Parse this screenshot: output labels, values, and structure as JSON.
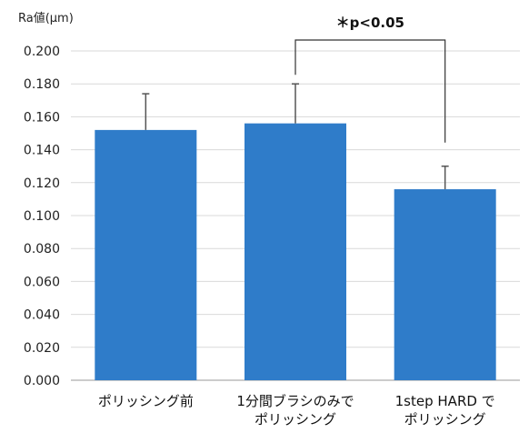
{
  "chart_data": {
    "type": "bar",
    "ylabel": "Ra値(μm)",
    "ylim": [
      0,
      0.2
    ],
    "yticks": [
      "0.000",
      "0.020",
      "0.040",
      "0.060",
      "0.080",
      "0.100",
      "0.120",
      "0.140",
      "0.160",
      "0.180",
      "0.200"
    ],
    "categories": [
      [
        "ポリッシング前"
      ],
      [
        "1分間ブラシのみで",
        "ポリッシング"
      ],
      [
        "1step HARD で",
        "ポリッシング"
      ]
    ],
    "values": [
      0.152,
      0.156,
      0.116
    ],
    "error_upper": [
      0.174,
      0.18,
      0.13
    ],
    "bar_color": "#2f7cc9",
    "grid": true,
    "significance": {
      "label": "＊p<0.05",
      "between": [
        1,
        2
      ]
    }
  }
}
